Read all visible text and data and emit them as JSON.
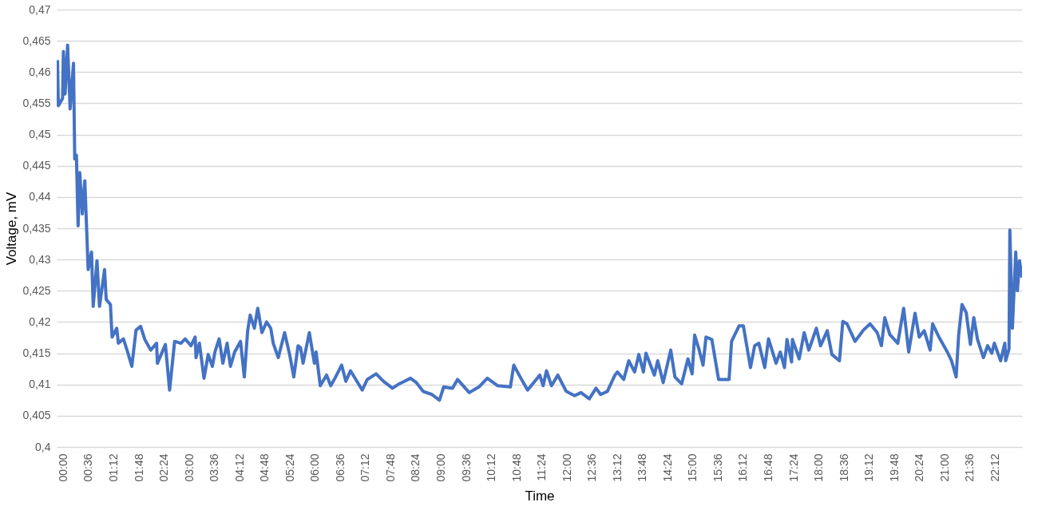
{
  "chart_data": {
    "type": "line",
    "xlabel": "Time",
    "ylabel": "Voltage, mV",
    "grid": "y",
    "legend": false,
    "marker": "none",
    "line_style": "solid",
    "xlim": [
      -0.16,
      22.84
    ],
    "ylim": [
      0.4,
      0.47
    ],
    "xticks": [
      {
        "value": 0,
        "label": "00:00"
      },
      {
        "value": 0.6,
        "label": "00:36"
      },
      {
        "value": 1.2,
        "label": "01:12"
      },
      {
        "value": 1.8,
        "label": "01:48"
      },
      {
        "value": 2.4,
        "label": "02:24"
      },
      {
        "value": 3.0,
        "label": "03:00"
      },
      {
        "value": 3.6,
        "label": "03:36"
      },
      {
        "value": 4.2,
        "label": "04:12"
      },
      {
        "value": 4.8,
        "label": "04:48"
      },
      {
        "value": 5.4,
        "label": "05:24"
      },
      {
        "value": 6.0,
        "label": "06:00"
      },
      {
        "value": 6.6,
        "label": "06:36"
      },
      {
        "value": 7.2,
        "label": "07:12"
      },
      {
        "value": 7.8,
        "label": "07:48"
      },
      {
        "value": 8.4,
        "label": "08:24"
      },
      {
        "value": 9.0,
        "label": "09:00"
      },
      {
        "value": 9.6,
        "label": "09:36"
      },
      {
        "value": 10.2,
        "label": "10:12"
      },
      {
        "value": 10.8,
        "label": "10:48"
      },
      {
        "value": 11.4,
        "label": "11:24"
      },
      {
        "value": 12.0,
        "label": "12:00"
      },
      {
        "value": 12.6,
        "label": "12:36"
      },
      {
        "value": 13.2,
        "label": "13:12"
      },
      {
        "value": 13.8,
        "label": "13:48"
      },
      {
        "value": 14.4,
        "label": "14:24"
      },
      {
        "value": 15.0,
        "label": "15:00"
      },
      {
        "value": 15.6,
        "label": "15:36"
      },
      {
        "value": 16.2,
        "label": "16:12"
      },
      {
        "value": 16.8,
        "label": "16:48"
      },
      {
        "value": 17.4,
        "label": "17:24"
      },
      {
        "value": 18.0,
        "label": "18:00"
      },
      {
        "value": 18.6,
        "label": "18:36"
      },
      {
        "value": 19.2,
        "label": "19:12"
      },
      {
        "value": 19.8,
        "label": "19:48"
      },
      {
        "value": 20.4,
        "label": "20:24"
      },
      {
        "value": 21.0,
        "label": "21:00"
      },
      {
        "value": 21.6,
        "label": "21:36"
      },
      {
        "value": 22.2,
        "label": "22:12"
      }
    ],
    "yticks": [
      {
        "value": 0.4,
        "label": "0,4"
      },
      {
        "value": 0.405,
        "label": "0,405"
      },
      {
        "value": 0.41,
        "label": "0,41"
      },
      {
        "value": 0.415,
        "label": "0,415"
      },
      {
        "value": 0.42,
        "label": "0,42"
      },
      {
        "value": 0.425,
        "label": "0,425"
      },
      {
        "value": 0.43,
        "label": "0,43"
      },
      {
        "value": 0.435,
        "label": "0,435"
      },
      {
        "value": 0.44,
        "label": "0,44"
      },
      {
        "value": 0.445,
        "label": "0,445"
      },
      {
        "value": 0.45,
        "label": "0,45"
      },
      {
        "value": 0.455,
        "label": "0,455"
      },
      {
        "value": 0.46,
        "label": "0,46"
      },
      {
        "value": 0.465,
        "label": "0,465"
      },
      {
        "value": 0.47,
        "label": "0,47"
      }
    ],
    "series": [
      {
        "color": "#4472c4",
        "x": [
          -0.14,
          -0.12,
          -0.02,
          0,
          0.04,
          0.1,
          0.16,
          0.24,
          0.27,
          0.31,
          0.35,
          0.39,
          0.45,
          0.51,
          0.59,
          0.67,
          0.71,
          0.8,
          0.86,
          0.98,
          1.02,
          1.12,
          1.16,
          1.27,
          1.31,
          1.43,
          1.53,
          1.63,
          1.73,
          1.84,
          1.94,
          2.08,
          2.22,
          2.24,
          2.43,
          2.53,
          2.65,
          2.8,
          2.9,
          3.04,
          3.14,
          3.16,
          3.24,
          3.35,
          3.45,
          3.55,
          3.61,
          3.71,
          3.8,
          3.9,
          3.98,
          4.08,
          4.22,
          4.31,
          4.39,
          4.45,
          4.55,
          4.63,
          4.73,
          4.84,
          4.94,
          5.0,
          5.12,
          5.27,
          5.39,
          5.49,
          5.59,
          5.65,
          5.71,
          5.86,
          5.98,
          6.02,
          6.12,
          6.27,
          6.37,
          6.47,
          6.63,
          6.73,
          6.84,
          7.12,
          7.24,
          7.45,
          7.63,
          7.84,
          8.0,
          8.27,
          8.41,
          8.57,
          8.78,
          8.96,
          9.06,
          9.27,
          9.39,
          9.67,
          9.9,
          10.1,
          10.35,
          10.65,
          10.73,
          10.9,
          11.06,
          11.35,
          11.43,
          11.51,
          11.63,
          11.78,
          11.98,
          12.18,
          12.33,
          12.53,
          12.69,
          12.8,
          12.96,
          13.14,
          13.2,
          13.35,
          13.47,
          13.61,
          13.71,
          13.82,
          13.88,
          14.08,
          14.16,
          14.29,
          14.47,
          14.57,
          14.73,
          14.88,
          14.98,
          15.04,
          15.14,
          15.24,
          15.31,
          15.45,
          15.61,
          15.86,
          15.92,
          16.1,
          16.2,
          16.37,
          16.47,
          16.57,
          16.71,
          16.8,
          16.98,
          17.08,
          17.18,
          17.24,
          17.35,
          17.37,
          17.53,
          17.65,
          17.76,
          17.94,
          18.04,
          18.2,
          18.31,
          18.49,
          18.57,
          18.67,
          18.86,
          19.06,
          19.22,
          19.39,
          19.49,
          19.57,
          19.69,
          19.88,
          20.02,
          20.14,
          20.29,
          20.39,
          20.51,
          20.65,
          20.71,
          20.86,
          21.06,
          21.16,
          21.27,
          21.33,
          21.41,
          21.51,
          21.61,
          21.69,
          21.78,
          21.92,
          22.02,
          22.12,
          22.18,
          22.33,
          22.43,
          22.45,
          22.53,
          22.55,
          22.61,
          22.69,
          22.73,
          22.78,
          22.84
        ],
        "values": [
          0.4619,
          0.4546,
          0.4558,
          0.4633,
          0.4565,
          0.4643,
          0.4541,
          0.4614,
          0.4461,
          0.4467,
          0.4354,
          0.4439,
          0.4373,
          0.4426,
          0.4284,
          0.4312,
          0.4225,
          0.4298,
          0.4225,
          0.4284,
          0.4236,
          0.4228,
          0.4176,
          0.419,
          0.4166,
          0.4173,
          0.4152,
          0.4129,
          0.4187,
          0.4193,
          0.4172,
          0.4155,
          0.4166,
          0.4134,
          0.4164,
          0.4091,
          0.4169,
          0.4166,
          0.4173,
          0.4162,
          0.4176,
          0.4143,
          0.4166,
          0.411,
          0.4148,
          0.4129,
          0.4152,
          0.4173,
          0.4134,
          0.4166,
          0.4129,
          0.4152,
          0.4169,
          0.4112,
          0.4186,
          0.4211,
          0.419,
          0.4222,
          0.4183,
          0.42,
          0.419,
          0.4166,
          0.4143,
          0.4183,
          0.4148,
          0.4112,
          0.4162,
          0.4159,
          0.4134,
          0.4183,
          0.4134,
          0.4152,
          0.4098,
          0.4115,
          0.4098,
          0.411,
          0.4131,
          0.4105,
          0.4122,
          0.4091,
          0.4108,
          0.4117,
          0.4105,
          0.4094,
          0.4101,
          0.411,
          0.4103,
          0.4089,
          0.4084,
          0.4075,
          0.4096,
          0.4094,
          0.4108,
          0.4087,
          0.4096,
          0.411,
          0.4098,
          0.4096,
          0.4131,
          0.411,
          0.4091,
          0.4115,
          0.4098,
          0.4122,
          0.4098,
          0.4115,
          0.4089,
          0.4082,
          0.4087,
          0.4077,
          0.4094,
          0.4084,
          0.4089,
          0.4115,
          0.412,
          0.4108,
          0.4138,
          0.412,
          0.4148,
          0.412,
          0.415,
          0.4115,
          0.4138,
          0.4103,
          0.4155,
          0.4112,
          0.4101,
          0.4141,
          0.4117,
          0.4179,
          0.4157,
          0.4131,
          0.4176,
          0.4172,
          0.4108,
          0.4108,
          0.4169,
          0.4194,
          0.4194,
          0.4127,
          0.4162,
          0.4166,
          0.4127,
          0.4173,
          0.4134,
          0.4152,
          0.4127,
          0.4172,
          0.4136,
          0.4172,
          0.4141,
          0.4183,
          0.4155,
          0.419,
          0.4162,
          0.4186,
          0.4148,
          0.4138,
          0.4201,
          0.4197,
          0.4169,
          0.4187,
          0.4197,
          0.4183,
          0.4162,
          0.4207,
          0.418,
          0.4166,
          0.4222,
          0.4152,
          0.4214,
          0.4176,
          0.4186,
          0.4155,
          0.4197,
          0.4176,
          0.4152,
          0.4138,
          0.4112,
          0.4179,
          0.4228,
          0.4215,
          0.4164,
          0.4207,
          0.4172,
          0.4143,
          0.4162,
          0.415,
          0.4166,
          0.4138,
          0.4166,
          0.4138,
          0.4157,
          0.4347,
          0.419,
          0.4312,
          0.425,
          0.4298,
          0.4271
        ]
      }
    ]
  }
}
